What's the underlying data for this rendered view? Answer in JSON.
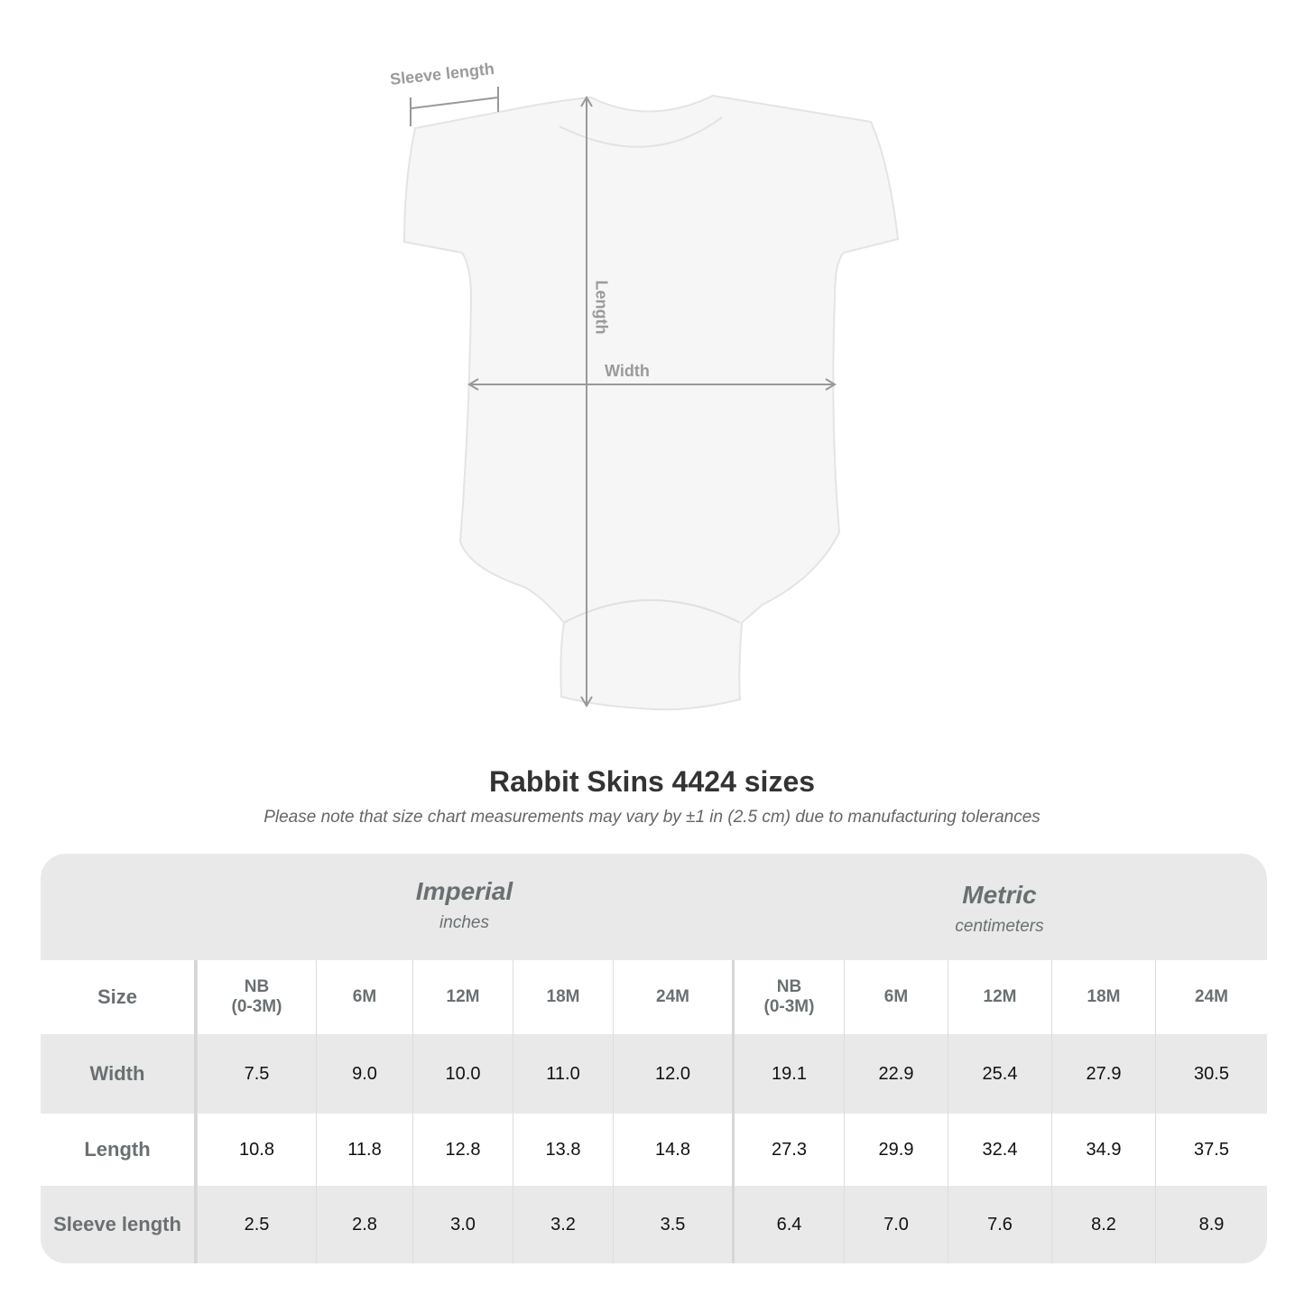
{
  "diagram": {
    "sleeve_label": "Sleeve length",
    "length_label": "Length",
    "width_label": "Width"
  },
  "title": "Rabbit Skins 4424 sizes",
  "note": "Please note that size chart measurements may vary by ±1 in (2.5 cm) due to manufacturing tolerances",
  "table": {
    "groups": [
      {
        "name": "Imperial",
        "unit": "inches"
      },
      {
        "name": "Metric",
        "unit": "centimeters"
      }
    ],
    "size_label": "Size",
    "sizes": [
      "NB\n(0-3M)",
      "6M",
      "12M",
      "18M",
      "24M",
      "NB\n(0-3M)",
      "6M",
      "12M",
      "18M",
      "24M"
    ],
    "rows": [
      {
        "label": "Width",
        "values": [
          "7.5",
          "9.0",
          "10.0",
          "11.0",
          "12.0",
          "19.1",
          "22.9",
          "25.4",
          "27.9",
          "30.5"
        ]
      },
      {
        "label": "Length",
        "values": [
          "10.8",
          "11.8",
          "12.8",
          "13.8",
          "14.8",
          "27.3",
          "29.9",
          "32.4",
          "34.9",
          "37.5"
        ]
      },
      {
        "label": "Sleeve length",
        "values": [
          "2.5",
          "2.8",
          "3.0",
          "3.2",
          "3.5",
          "6.4",
          "7.0",
          "7.6",
          "8.2",
          "8.9"
        ]
      }
    ]
  }
}
